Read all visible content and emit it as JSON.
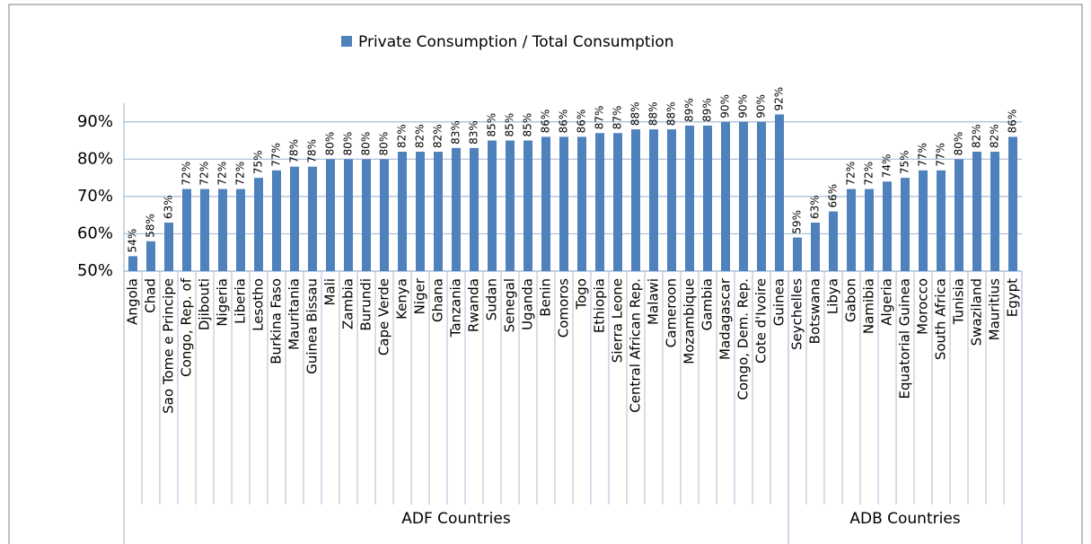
{
  "chart_data": {
    "type": "bar",
    "groups": [
      {
        "label": "ADF Countries",
        "categories": [
          "Angola",
          "Chad",
          "Sao Tome e Principe",
          "Congo, Rep. of",
          "Djibouti",
          "Nigeria",
          "Liberia",
          "Lesotho",
          "Burkina Faso",
          "Mauritania",
          "Guinea Bissau",
          "Mali",
          "Zambia",
          "Burundi",
          "Cape Verde",
          "Kenya",
          "Niger",
          "Ghana",
          "Tanzania",
          "Rwanda",
          "Sudan",
          "Senegal",
          "Uganda",
          "Benin",
          "Comoros",
          "Togo",
          "Ethiopia",
          "Sierra Leone",
          "Central African Rep.",
          "Malawi",
          "Cameroon",
          "Mozambique",
          "Gambia",
          "Madagascar",
          "Congo, Dem. Rep.",
          "Cote d'Ivoire",
          "Guinea"
        ]
      },
      {
        "label": "ADB Countries",
        "categories": [
          "Seychelles",
          "Botswana",
          "Libya",
          "Gabon",
          "Namibia",
          "Algeria",
          "Equatorial Guinea",
          "Morocco",
          "South Africa",
          "Tunisia",
          "Swaziland",
          "Mauritius",
          "Egypt"
        ]
      }
    ],
    "series": [
      {
        "name": "Private Consumption / Total Consumption",
        "color": "#4f81bd",
        "values": [
          54,
          58,
          63,
          72,
          72,
          72,
          72,
          75,
          77,
          78,
          78,
          80,
          80,
          80,
          80,
          82,
          82,
          82,
          83,
          83,
          85,
          85,
          85,
          86,
          86,
          86,
          87,
          87,
          88,
          88,
          88,
          89,
          89,
          90,
          90,
          90,
          92,
          59,
          63,
          66,
          72,
          72,
          74,
          75,
          77,
          77,
          80,
          82,
          82,
          86
        ],
        "value_labels": [
          "54%",
          "58%",
          "63%",
          "72%",
          "72%",
          "72%",
          "72%",
          "75%",
          "77%",
          "78%",
          "78%",
          "80%",
          "80%",
          "80%",
          "80%",
          "82%",
          "82%",
          "82%",
          "83%",
          "83%",
          "85%",
          "85%",
          "85%",
          "86%",
          "86%",
          "86%",
          "87%",
          "87%",
          "88%",
          "88%",
          "88%",
          "89%",
          "89%",
          "90%",
          "90%",
          "90%",
          "92%",
          "59%",
          "63%",
          "66%",
          "72%",
          "72%",
          "74%",
          "75%",
          "77%",
          "77%",
          "80%",
          "82%",
          "82%",
          "86%"
        ]
      }
    ],
    "ylim": [
      50,
      95
    ],
    "yticks": [
      {
        "value": 50,
        "label": "50%"
      },
      {
        "value": 60,
        "label": "60%"
      },
      {
        "value": 70,
        "label": "70%"
      },
      {
        "value": 80,
        "label": "80%"
      },
      {
        "value": 90,
        "label": "90%"
      }
    ],
    "grid": true
  }
}
